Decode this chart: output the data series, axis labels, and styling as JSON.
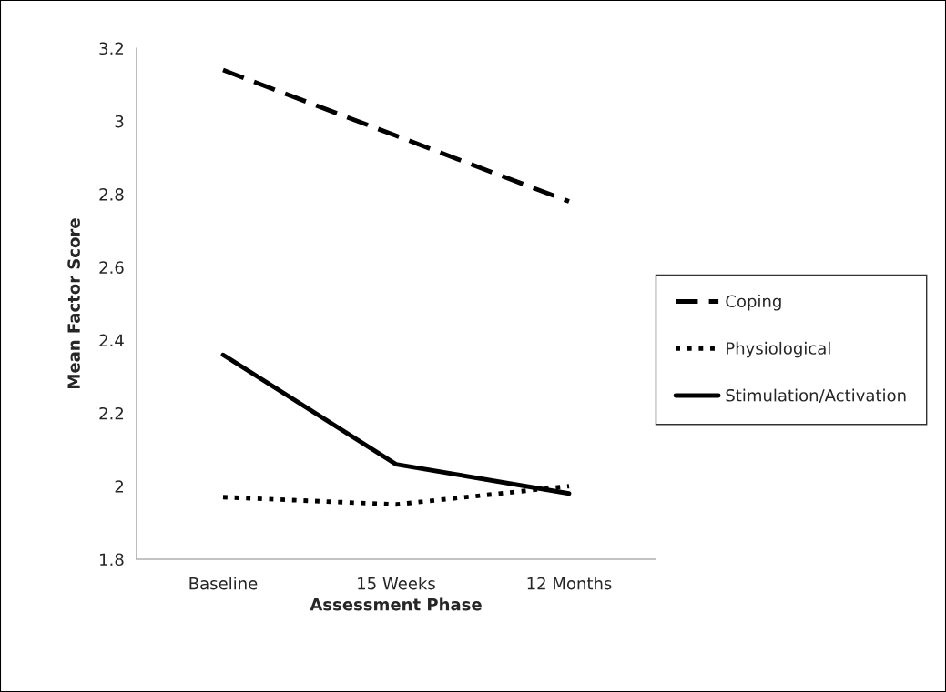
{
  "chart_data": {
    "type": "line",
    "xlabel": "Assessment Phase",
    "ylabel": "Mean Factor Score",
    "categories": [
      "Baseline",
      "15 Weeks",
      "12 Months"
    ],
    "series": [
      {
        "name": "Coping",
        "color": "#000000",
        "line_style": "dashed",
        "values": [
          3.14,
          2.96,
          2.78
        ]
      },
      {
        "name": "Physiological",
        "color": "#000000",
        "line_style": "dotted",
        "values": [
          1.97,
          1.95,
          2.0
        ]
      },
      {
        "name": "Stimulation/Activation",
        "color": "#000000",
        "line_style": "solid",
        "values": [
          2.36,
          2.06,
          1.98
        ]
      }
    ],
    "ylim": [
      1.8,
      3.2
    ],
    "yticks": [
      1.8,
      2,
      2.2,
      2.4,
      2.6,
      2.8,
      3,
      3.2
    ],
    "grid": false,
    "legend": "right",
    "marker": "none"
  }
}
